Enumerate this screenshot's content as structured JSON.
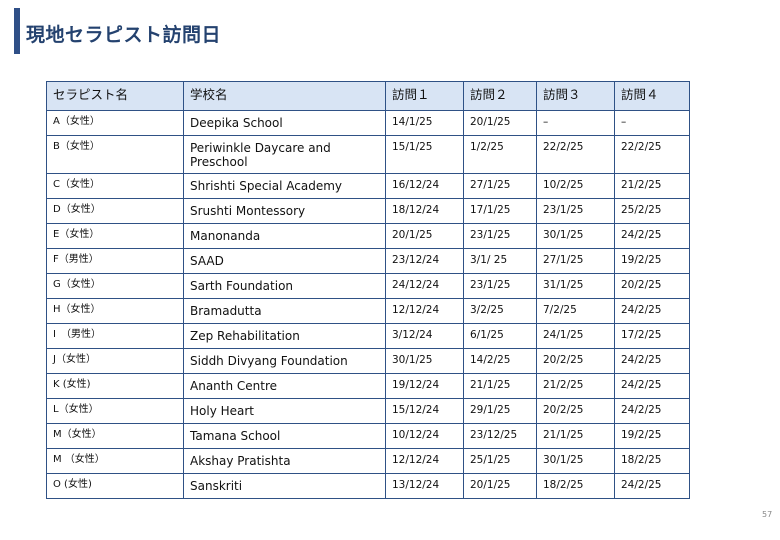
{
  "title": "現地セラピスト訪問日",
  "page_number": "57",
  "table": {
    "headers": [
      "セラピスト名",
      "学校名",
      "訪問１",
      "訪問２",
      "訪問３",
      "訪問４"
    ],
    "rows": [
      {
        "therapist": "A（女性）",
        "school": "Deepika School",
        "v1": "14/1/25",
        "v2": "20/1/25",
        "v3": "–",
        "v4": "–"
      },
      {
        "therapist": "B（女性）",
        "school": "Periwinkle Daycare and Preschool",
        "v1": "15/1/25",
        "v2": "1/2/25",
        "v3": "22/2/25",
        "v4": "22/2/25"
      },
      {
        "therapist": "C（女性）",
        "school": "Shrishti Special Academy",
        "v1": "16/12/24",
        "v2": "27/1/25",
        "v3": "10/2/25",
        "v4": "21/2/25"
      },
      {
        "therapist": "D（女性）",
        "school": "Srushti Montessory",
        "v1": "18/12/24",
        "v2": "17/1/25",
        "v3": "23/1/25",
        "v4": "25/2/25"
      },
      {
        "therapist": "E（女性）",
        "school": "Manonanda",
        "v1": "20/1/25",
        "v2": "23/1/25",
        "v3": "30/1/25",
        "v4": "24/2/25"
      },
      {
        "therapist": "F（男性）",
        "school": "SAAD",
        "v1": "23/12/24",
        "v2": "3/1/ 25",
        "v3": "27/1/25",
        "v4": "19/2/25"
      },
      {
        "therapist": "G（女性）",
        "school": "Sarth Foundation",
        "v1": "24/12/24",
        "v2": "23/1/25",
        "v3": "31/1/25",
        "v4": "20/2/25"
      },
      {
        "therapist": "H（女性）",
        "school": "Bramadutta",
        "v1": "12/12/24",
        "v2": "3/2/25",
        "v3": "7/2/25",
        "v4": "24/2/25"
      },
      {
        "therapist": "I　（男性）",
        "school": "Zep Rehabilitation",
        "v1": "3/12/24",
        "v2": "6/1/25",
        "v3": "24/1/25",
        "v4": "17/2/25"
      },
      {
        "therapist": "J（女性）",
        "school": "Siddh Divyang Foundation",
        "v1": "30/1/25",
        "v2": "14/2/25",
        "v3": "20/2/25",
        "v4": "24/2/25"
      },
      {
        "therapist": "K (女性)",
        "school": "Ananth Centre",
        "v1": "19/12/24",
        "v2": "21/1/25",
        "v3": "21/2/25",
        "v4": "24/2/25"
      },
      {
        "therapist": "L（女性）",
        "school": "Holy Heart",
        "v1": "15/12/24",
        "v2": "29/1/25",
        "v3": "20/2/25",
        "v4": "24/2/25"
      },
      {
        "therapist": "M（女性）",
        "school": "Tamana School",
        "v1": "10/12/24",
        "v2": "23/12/25",
        "v3": "21/1/25",
        "v4": "19/2/25"
      },
      {
        "therapist": "M （女性）",
        "school": "Akshay Pratishta",
        "v1": "12/12/24",
        "v2": "25/1/25",
        "v3": "30/1/25",
        "v4": "18/2/25"
      },
      {
        "therapist": "O (女性)",
        "school": "Sanskriti",
        "v1": "13/12/24",
        "v2": "20/1/25",
        "v3": "18/2/25",
        "v4": "24/2/25"
      }
    ]
  }
}
